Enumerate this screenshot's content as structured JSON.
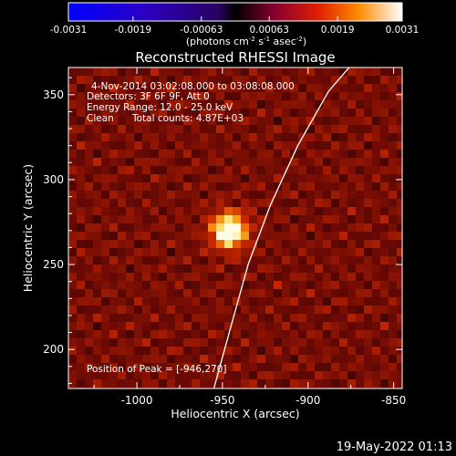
{
  "colorbar": {
    "ticks": [
      "-0.0031",
      "-0.0019",
      "-0.00063",
      "0.00063",
      "0.0019",
      "0.0031"
    ],
    "range": [
      -0.0031,
      0.0031
    ],
    "unit_main": "(photons cm",
    "unit_exp1": "-2",
    "unit_mid1": " s",
    "unit_exp2": "-1",
    "unit_mid2": " asec",
    "unit_exp3": "-2",
    "unit_end": ")"
  },
  "title": "Reconstructed RHESSI Image",
  "info": {
    "time": "4-Nov-2014 03:02:08.000 to 03:08:08.000",
    "detectors": "Detectors: 3F 6F 9F, Att 0",
    "energy": "Energy Range: 12.0 - 25.0 keV",
    "method": "Clean",
    "counts": "Total counts: 4.87E+03"
  },
  "peak_label": "Position of Peak = [-946,270]",
  "footer_timestamp": "19-May-2022 01:13",
  "chart_data": {
    "type": "heatmap",
    "title": "Reconstructed RHESSI Image",
    "xlabel": "Heliocentric X (arcsec)",
    "ylabel": "Heliocentric Y (arcsec)",
    "xlim": [
      -1040,
      -845
    ],
    "ylim": [
      177,
      366
    ],
    "x_ticks": [
      -1000,
      -950,
      -900,
      -850
    ],
    "x_tick_labels": [
      "-1000",
      "-950",
      "-900",
      "-850"
    ],
    "y_ticks": [
      200,
      250,
      300,
      350
    ],
    "y_tick_labels": [
      "200",
      "250",
      "300",
      "350"
    ],
    "peak": {
      "x": -946,
      "y": 270
    },
    "limb": {
      "x": [
        -955,
        -946,
        -935,
        -922,
        -906,
        -888,
        -876
      ],
      "y": [
        177,
        210,
        250,
        285,
        320,
        352,
        366
      ]
    },
    "colormap": "red-temperature",
    "colors": {
      "low": "#0000ff",
      "zero": "#000000",
      "mid": "#c81e00",
      "high": "#ffffff"
    }
  }
}
